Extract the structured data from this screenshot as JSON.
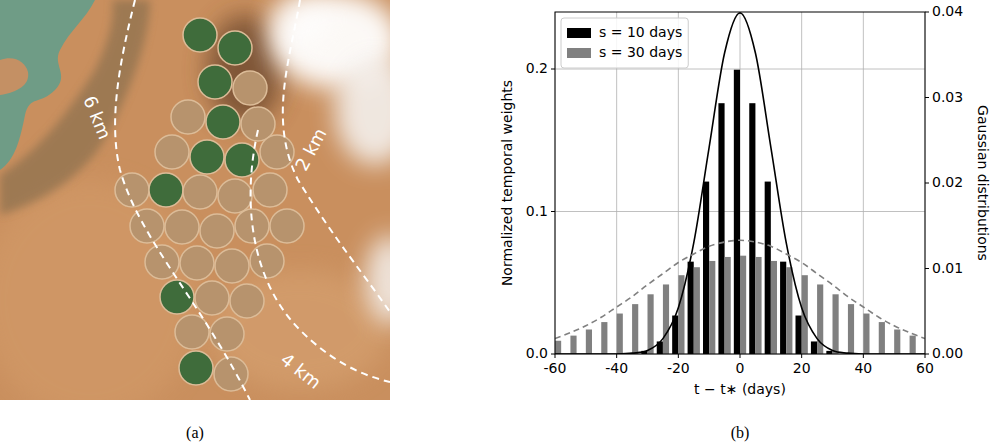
{
  "image_panel": {
    "panel_label": "(a)",
    "contour_labels": [
      "6 km",
      "2 km",
      "4 km"
    ]
  },
  "chart_data": {
    "type": "bar",
    "panel_label": "(b)",
    "x_label": "t − t∗ (days)",
    "y_label": "Normalized temporal weights",
    "y2_label": "Gaussian distributions",
    "xlim": [
      -60,
      60
    ],
    "xticks": [
      -60,
      -40,
      -20,
      0,
      20,
      40,
      60
    ],
    "ylim": [
      0,
      0.24
    ],
    "yticks": [
      {
        "value": 0,
        "label": "0.0"
      },
      {
        "value": 0.1,
        "label": "0.1"
      },
      {
        "value": 0.2,
        "label": "0.2"
      }
    ],
    "y2lim": [
      0,
      0.04
    ],
    "y2ticks": [
      {
        "value": 0,
        "label": "0.00"
      },
      {
        "value": 0.01,
        "label": "0.01"
      },
      {
        "value": 0.02,
        "label": "0.02"
      },
      {
        "value": 0.03,
        "label": "0.03"
      },
      {
        "value": 0.04,
        "label": "0.04"
      }
    ],
    "grid": true,
    "legend": "upper left",
    "series": [
      {
        "name": "s = 10 days",
        "type": "bar",
        "color": "#000000",
        "x": [
          -30,
          -25,
          -20,
          -15,
          -10,
          -5,
          0,
          5,
          10,
          15,
          20,
          25,
          30
        ],
        "values": [
          0.0022,
          0.0088,
          0.027,
          0.0648,
          0.121,
          0.176,
          0.1995,
          0.176,
          0.121,
          0.0648,
          0.027,
          0.0088,
          0.0022
        ]
      },
      {
        "name": "s = 30 days",
        "type": "bar",
        "color": "#808080",
        "x": [
          -60,
          -55,
          -50,
          -45,
          -40,
          -35,
          -30,
          -25,
          -20,
          -15,
          -10,
          -5,
          0,
          5,
          10,
          15,
          20,
          25,
          30,
          35,
          40,
          45,
          50,
          55,
          60
        ],
        "values": [
          0.0093,
          0.0129,
          0.0172,
          0.0224,
          0.0284,
          0.035,
          0.0419,
          0.0488,
          0.0553,
          0.0609,
          0.0653,
          0.0681,
          0.069,
          0.0681,
          0.0653,
          0.0609,
          0.0553,
          0.0488,
          0.0419,
          0.035,
          0.0284,
          0.0224,
          0.0172,
          0.0129,
          0.0093
        ]
      },
      {
        "type": "line",
        "axis": "y2",
        "color": "#000000",
        "line_style": "solid",
        "x": [
          -60,
          -55,
          -50,
          -45,
          -40,
          -35,
          -30,
          -25,
          -20,
          -15,
          -10,
          -5,
          0,
          5,
          10,
          15,
          20,
          25,
          30,
          35,
          40,
          45,
          50,
          55,
          60
        ],
        "values": [
          0,
          0,
          0,
          0,
          0,
          0.0001,
          0.0004,
          0.0018,
          0.0054,
          0.013,
          0.0242,
          0.0352,
          0.0399,
          0.0352,
          0.0242,
          0.013,
          0.0054,
          0.0018,
          0.0004,
          0.0001,
          0,
          0,
          0,
          0,
          0
        ]
      },
      {
        "type": "line",
        "axis": "y2",
        "color": "#808080",
        "line_style": "dashed",
        "x": [
          -60,
          -55,
          -50,
          -45,
          -40,
          -35,
          -30,
          -25,
          -20,
          -15,
          -10,
          -5,
          0,
          5,
          10,
          15,
          20,
          25,
          30,
          35,
          40,
          45,
          50,
          55,
          60
        ],
        "values": [
          0.0018,
          0.0025,
          0.0033,
          0.0043,
          0.0055,
          0.0067,
          0.0081,
          0.0094,
          0.0107,
          0.0117,
          0.0126,
          0.0131,
          0.0133,
          0.0131,
          0.0126,
          0.0117,
          0.0107,
          0.0094,
          0.0081,
          0.0067,
          0.0055,
          0.0043,
          0.0033,
          0.0025,
          0.0018
        ]
      }
    ]
  }
}
